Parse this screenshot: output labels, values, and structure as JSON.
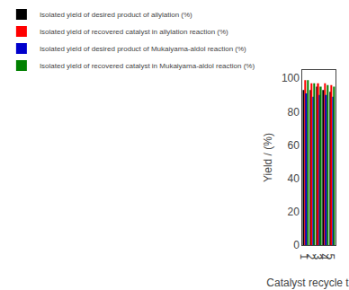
{
  "chart_data": {
    "type": "bar",
    "xlabel": "Catalyst recycle times",
    "ylabel": "Yield / (%)",
    "categories": [
      1,
      2,
      3,
      4,
      5
    ],
    "series": [
      {
        "name": "Isolated yield of desired product of allylation (%)",
        "color": "#000000",
        "values": [
          93,
          93,
          95,
          93,
          92
        ]
      },
      {
        "name": "Isolated yield of recovered catalyst in allylation reaction (%)",
        "color": "#ff0000",
        "values": [
          99,
          97,
          97,
          97,
          96
        ]
      },
      {
        "name": "Isolated yield of desired product of Mukaiyama-aldol reaction (%)",
        "color": "#0000cc",
        "values": [
          91,
          89,
          90,
          90,
          89
        ]
      },
      {
        "name": "Isolated yield of recovered catalyst in Mukaiyama-aldol reaction (%)",
        "color": "#008000",
        "values": [
          99,
          97,
          95,
          96,
          95
        ]
      }
    ],
    "ylim": [
      0,
      105
    ],
    "yticks": [
      0,
      20,
      40,
      60,
      80,
      100
    ],
    "grid": false,
    "legend": "top"
  }
}
